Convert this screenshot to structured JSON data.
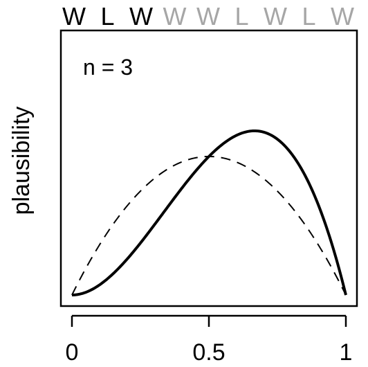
{
  "chart_data": {
    "type": "line",
    "sequence": [
      {
        "label": "W",
        "active": true
      },
      {
        "label": "L",
        "active": true
      },
      {
        "label": "W",
        "active": true
      },
      {
        "label": "W",
        "active": false
      },
      {
        "label": "W",
        "active": false
      },
      {
        "label": "L",
        "active": false
      },
      {
        "label": "W",
        "active": false
      },
      {
        "label": "L",
        "active": false
      },
      {
        "label": "W",
        "active": false
      }
    ],
    "annotation": "n = 3",
    "ylabel": "plausibility",
    "xlabel": "",
    "xlim": [
      0,
      1
    ],
    "x_ticks": [
      0,
      0.5,
      1
    ],
    "x_tick_labels": [
      "0",
      "0.5",
      "1"
    ],
    "yticks_shown": false,
    "series": [
      {
        "style": "solid",
        "formula": "p^2 (1-p)",
        "x": [
          0,
          0.1,
          0.2,
          0.3,
          0.4,
          0.5,
          0.6,
          0.667,
          0.7,
          0.8,
          0.9,
          1
        ],
        "y": [
          0,
          0.009,
          0.032,
          0.063,
          0.096,
          0.125,
          0.144,
          0.148,
          0.147,
          0.128,
          0.081,
          0
        ]
      },
      {
        "style": "dashed",
        "formula": "p (1-p)",
        "x": [
          0,
          0.1,
          0.2,
          0.3,
          0.4,
          0.5,
          0.6,
          0.7,
          0.8,
          0.9,
          1
        ],
        "y": [
          0,
          0.09,
          0.16,
          0.21,
          0.24,
          0.25,
          0.24,
          0.21,
          0.16,
          0.09,
          0
        ]
      }
    ],
    "colors": {
      "active": "#000000",
      "inactive": "#a6a6a6",
      "line": "#000000"
    }
  }
}
